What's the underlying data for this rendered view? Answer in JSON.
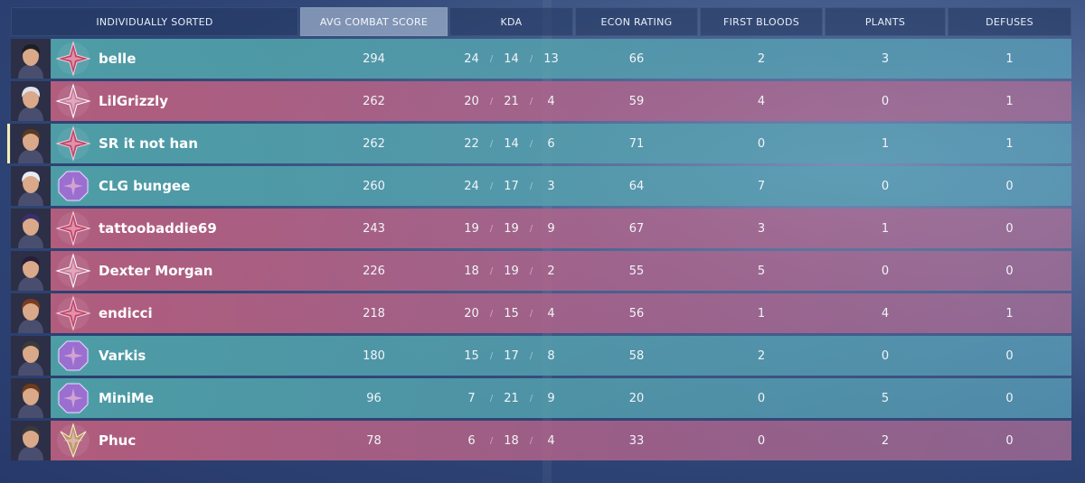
{
  "header": {
    "columns": [
      {
        "label": "INDIVIDUALLY SORTED",
        "active": false
      },
      {
        "label": "AVG COMBAT SCORE",
        "active": true
      },
      {
        "label": "KDA",
        "active": false
      },
      {
        "label": "ECON RATING",
        "active": false
      },
      {
        "label": "FIRST BLOODS",
        "active": false
      },
      {
        "label": "PLANTS",
        "active": false
      },
      {
        "label": "DEFUSES",
        "active": false
      }
    ]
  },
  "kda_separator": "/",
  "colors": {
    "team_teal": "#52a5aa",
    "team_red": "#be5f7d",
    "header_active": "#becde1",
    "current_player_marker": "#f4f0b0"
  },
  "players": [
    {
      "name": "belle",
      "team": "teal",
      "agent_icon": "agent-portrait-icon",
      "rank_icon": "rank-immortal-icon",
      "acs": "294",
      "kills": "24",
      "deaths": "14",
      "assists": "13",
      "econ": "66",
      "first_bloods": "2",
      "plants": "3",
      "defuses": "1"
    },
    {
      "name": "LilGrizzly",
      "team": "red",
      "agent_icon": "agent-portrait-icon",
      "rank_icon": "rank-ascendant-icon",
      "acs": "262",
      "kills": "20",
      "deaths": "21",
      "assists": "4",
      "econ": "59",
      "first_bloods": "4",
      "plants": "0",
      "defuses": "1"
    },
    {
      "name": "SR it not han",
      "team": "teal",
      "current_player": true,
      "agent_icon": "agent-portrait-icon",
      "rank_icon": "rank-immortal-icon",
      "acs": "262",
      "kills": "22",
      "deaths": "14",
      "assists": "6",
      "econ": "71",
      "first_bloods": "0",
      "plants": "1",
      "defuses": "1"
    },
    {
      "name": "CLG bungee",
      "team": "teal",
      "agent_icon": "agent-portrait-icon",
      "rank_icon": "rank-diamond-icon",
      "acs": "260",
      "kills": "24",
      "deaths": "17",
      "assists": "3",
      "econ": "64",
      "first_bloods": "7",
      "plants": "0",
      "defuses": "0"
    },
    {
      "name": "tattoobaddie69",
      "team": "red",
      "agent_icon": "agent-portrait-icon",
      "rank_icon": "rank-immortal-icon",
      "acs": "243",
      "kills": "19",
      "deaths": "19",
      "assists": "9",
      "econ": "67",
      "first_bloods": "3",
      "plants": "1",
      "defuses": "0"
    },
    {
      "name": "Dexter Morgan",
      "team": "red",
      "agent_icon": "agent-portrait-icon",
      "rank_icon": "rank-ascendant-icon",
      "acs": "226",
      "kills": "18",
      "deaths": "19",
      "assists": "2",
      "econ": "55",
      "first_bloods": "5",
      "plants": "0",
      "defuses": "0"
    },
    {
      "name": "endicci",
      "team": "red",
      "agent_icon": "agent-portrait-icon",
      "rank_icon": "rank-immortal-icon",
      "acs": "218",
      "kills": "20",
      "deaths": "15",
      "assists": "4",
      "econ": "56",
      "first_bloods": "1",
      "plants": "4",
      "defuses": "1"
    },
    {
      "name": "Varkis",
      "team": "teal",
      "agent_icon": "agent-portrait-icon",
      "rank_icon": "rank-diamond-icon",
      "acs": "180",
      "kills": "15",
      "deaths": "17",
      "assists": "8",
      "econ": "58",
      "first_bloods": "2",
      "plants": "0",
      "defuses": "0"
    },
    {
      "name": "MiniMe",
      "team": "teal",
      "agent_icon": "agent-portrait-icon",
      "rank_icon": "rank-diamond-icon",
      "acs": "96",
      "kills": "7",
      "deaths": "21",
      "assists": "9",
      "econ": "20",
      "first_bloods": "0",
      "plants": "5",
      "defuses": "0"
    },
    {
      "name": "Phuc",
      "team": "red",
      "agent_icon": "agent-portrait-icon",
      "rank_icon": "rank-radiant-icon",
      "acs": "78",
      "kills": "6",
      "deaths": "18",
      "assists": "4",
      "econ": "33",
      "first_bloods": "0",
      "plants": "2",
      "defuses": "0"
    }
  ]
}
